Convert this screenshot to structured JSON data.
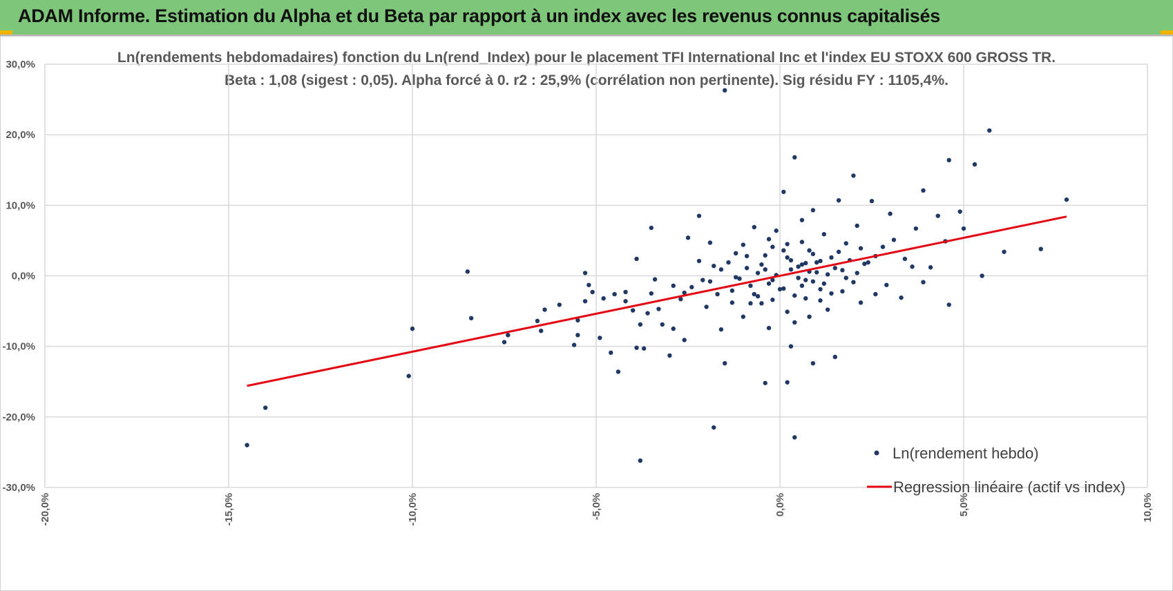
{
  "banner": {
    "title": "ADAM Informe. Estimation du Alpha et du Beta par rapport à un index avec les revenus connus capitalisés"
  },
  "colors": {
    "banner_bg": "#7dc67a",
    "accent_corner": "#f0b400",
    "points": "#203864",
    "regression": "#e30613",
    "grid": "#d9d9d9",
    "text": "#595959"
  },
  "chart_data": {
    "type": "scatter",
    "title": "Ln(rendements hebdomadaires) fonction du Ln(rend_Index) pour le placement TFI International Inc et l'index EU STOXX 600 GROSS TR.",
    "subtitle": "Beta : 1,08 (sigest : 0,05). Alpha forcé à 0. r2 : 25,9% (corrélation non pertinente). Sig résidu FY : 1105,4%.",
    "xlabel": "",
    "ylabel": "",
    "xlim": [
      -20,
      10
    ],
    "ylim": [
      -30,
      30
    ],
    "x_ticks": [
      -20,
      -15,
      -10,
      -5,
      0,
      5,
      10
    ],
    "y_ticks": [
      -30,
      -20,
      -10,
      0,
      10,
      20,
      30
    ],
    "x_tick_labels": [
      "-20,0%",
      "-15,0%",
      "-10,0%",
      "-5,0%",
      "0,0%",
      "5,0%",
      "10,0%"
    ],
    "y_tick_labels": [
      "-30,0%",
      "-20,0%",
      "-10,0%",
      "0,0%",
      "10,0%",
      "20,0%",
      "30,0%"
    ],
    "grid": true,
    "legend_position": "bottom-right",
    "series": [
      {
        "name": "Ln(rendement hebdo)",
        "kind": "scatter",
        "color": "#203864",
        "points": [
          [
            -14.5,
            -24
          ],
          [
            -14,
            -18.7
          ],
          [
            -10,
            -7.5
          ],
          [
            -10.1,
            -14.2
          ],
          [
            -8.5,
            0.6
          ],
          [
            -8.4,
            -6
          ],
          [
            -7.5,
            -9.4
          ],
          [
            -7.4,
            -8.4
          ],
          [
            -6.6,
            -6.4
          ],
          [
            -6.5,
            -7.8
          ],
          [
            -6.4,
            -4.8
          ],
          [
            -6,
            -4.1
          ],
          [
            -5.6,
            -9.8
          ],
          [
            -5.5,
            -8.4
          ],
          [
            -5.5,
            -6.3
          ],
          [
            -5.3,
            -3.6
          ],
          [
            -5.2,
            -1.3
          ],
          [
            -5.3,
            0.4
          ],
          [
            -5.1,
            -2.3
          ],
          [
            -4.9,
            -8.8
          ],
          [
            -4.8,
            -3.2
          ],
          [
            -4.6,
            -10.9
          ],
          [
            -4.4,
            -13.6
          ],
          [
            -4.5,
            -2.6
          ],
          [
            -4.2,
            -3.6
          ],
          [
            -4,
            -4.9
          ],
          [
            -4.2,
            -2.3
          ],
          [
            -3.9,
            -10.2
          ],
          [
            -3.7,
            -10.3
          ],
          [
            -3.8,
            -6.9
          ],
          [
            -3.6,
            -5.3
          ],
          [
            -3.9,
            2.4
          ],
          [
            -3.4,
            -0.5
          ],
          [
            -3.3,
            -4.7
          ],
          [
            -3.2,
            -6.9
          ],
          [
            -3.5,
            -2.5
          ],
          [
            -3.8,
            -26.2
          ],
          [
            -3.5,
            6.8
          ],
          [
            -3,
            -11.3
          ],
          [
            -2.9,
            -7.5
          ],
          [
            -2.7,
            -3.3
          ],
          [
            -2.6,
            -9.1
          ],
          [
            -2.5,
            5.4
          ],
          [
            -2.2,
            2.1
          ],
          [
            -2.4,
            -1.6
          ],
          [
            -2.2,
            8.5
          ],
          [
            -2,
            -4.4
          ],
          [
            -1.9,
            -0.8
          ],
          [
            -1.9,
            4.7
          ],
          [
            -1.8,
            -21.5
          ],
          [
            -1.7,
            -2.6
          ],
          [
            -1.6,
            -7.6
          ],
          [
            -1.5,
            -12.4
          ],
          [
            -1.4,
            1.9
          ],
          [
            -1.3,
            -3.8
          ],
          [
            -1.5,
            26.3
          ],
          [
            -1.2,
            -0.2
          ],
          [
            -1,
            4.4
          ],
          [
            -1,
            -5.8
          ],
          [
            -0.9,
            2.8
          ],
          [
            -0.7,
            6.9
          ],
          [
            -0.6,
            -2.9
          ],
          [
            -0.5,
            -3.9
          ],
          [
            -0.4,
            0.9
          ],
          [
            -0.3,
            5.2
          ],
          [
            -0.3,
            -7.4
          ],
          [
            -0.4,
            -15.2
          ],
          [
            -0.1,
            6.4
          ],
          [
            -0.2,
            -3.4
          ],
          [
            0.1,
            11.9
          ],
          [
            0.1,
            -1.8
          ],
          [
            0.2,
            4.5
          ],
          [
            0.2,
            -5.1
          ],
          [
            0.3,
            2.2
          ],
          [
            0.3,
            -10
          ],
          [
            0.2,
            -15.1
          ],
          [
            0.4,
            -6.6
          ],
          [
            0.4,
            16.8
          ],
          [
            0.4,
            -22.9
          ],
          [
            0.6,
            7.9
          ],
          [
            0.6,
            1.6
          ],
          [
            0.7,
            -3.2
          ],
          [
            0.8,
            3.6
          ],
          [
            0.8,
            -5.8
          ],
          [
            0.9,
            9.3
          ],
          [
            0.9,
            -12.4
          ],
          [
            1,
            0.5
          ],
          [
            1.1,
            -1.9
          ],
          [
            1.2,
            5.9
          ],
          [
            1.3,
            -4.8
          ],
          [
            1.4,
            2.6
          ],
          [
            1.5,
            -11.5
          ],
          [
            1.6,
            10.7
          ],
          [
            1.7,
            -2.2
          ],
          [
            1.8,
            4.6
          ],
          [
            2,
            14.2
          ],
          [
            2,
            -0.9
          ],
          [
            2.1,
            7.1
          ],
          [
            2.2,
            -3.8
          ],
          [
            2.3,
            1.7
          ],
          [
            2.5,
            10.6
          ],
          [
            2.6,
            -2.6
          ],
          [
            2.8,
            4.1
          ],
          [
            2.9,
            -1.3
          ],
          [
            3,
            8.8
          ],
          [
            3.1,
            5.1
          ],
          [
            3.3,
            -3.1
          ],
          [
            3.4,
            2.4
          ],
          [
            3.6,
            1.3
          ],
          [
            3.7,
            6.7
          ],
          [
            3.9,
            12.1
          ],
          [
            3.9,
            -0.9
          ],
          [
            4.1,
            1.2
          ],
          [
            4.3,
            8.5
          ],
          [
            4.5,
            4.9
          ],
          [
            4.6,
            -4.1
          ],
          [
            4.6,
            16.4
          ],
          [
            4.9,
            9.1
          ],
          [
            5,
            6.7
          ],
          [
            5.3,
            15.8
          ],
          [
            5.5,
            0
          ],
          [
            5.7,
            20.6
          ],
          [
            6.1,
            3.4
          ],
          [
            7.1,
            3.8
          ],
          [
            7.8,
            10.8
          ],
          [
            -0.6,
            0.4
          ],
          [
            -0.2,
            -0.6
          ],
          [
            0.3,
            0.9
          ],
          [
            0.5,
            -0.3
          ],
          [
            0.7,
            1.8
          ],
          [
            0.9,
            -0.8
          ],
          [
            1.1,
            2.1
          ],
          [
            1.3,
            0.2
          ],
          [
            -0.8,
            -1.4
          ],
          [
            -0.5,
            1.6
          ],
          [
            0,
            -1.9
          ],
          [
            0.2,
            2.6
          ],
          [
            0.6,
            -1.4
          ],
          [
            0.8,
            0.6
          ],
          [
            1.2,
            -1.1
          ],
          [
            1.5,
            1.1
          ],
          [
            1.7,
            0.8
          ],
          [
            1.9,
            2.2
          ],
          [
            -1.1,
            -0.4
          ],
          [
            -1.3,
            -2.1
          ],
          [
            -0.9,
            1.1
          ],
          [
            -0.7,
            -2.6
          ],
          [
            -0.4,
            2.9
          ],
          [
            0.1,
            3.6
          ],
          [
            0.4,
            -2.8
          ],
          [
            0.9,
            3.1
          ],
          [
            1.4,
            -2.5
          ],
          [
            1.6,
            3.4
          ],
          [
            2.1,
            0.4
          ],
          [
            2.4,
            1.9
          ],
          [
            -1.6,
            0.9
          ],
          [
            -2.1,
            -0.6
          ],
          [
            -2.6,
            -2.4
          ],
          [
            -2.9,
            -1.4
          ],
          [
            -0.1,
            0.1
          ],
          [
            0.5,
            1.3
          ],
          [
            1,
            1.9
          ],
          [
            -0.3,
            -1.1
          ],
          [
            0.7,
            -0.6
          ],
          [
            1.8,
            -0.3
          ],
          [
            2.6,
            2.8
          ],
          [
            -1.8,
            1.4
          ],
          [
            -0.2,
            4.1
          ],
          [
            0.6,
            4.8
          ],
          [
            1.1,
            -3.5
          ],
          [
            -0.8,
            -3.9
          ],
          [
            -1.2,
            3.2
          ],
          [
            2.2,
            3.9
          ]
        ]
      },
      {
        "name": "Regression linéaire (actif vs index)",
        "kind": "line",
        "color": "#e30613",
        "x": [
          -14.5,
          7.8
        ],
        "y": [
          -15.6,
          8.4
        ]
      }
    ]
  }
}
